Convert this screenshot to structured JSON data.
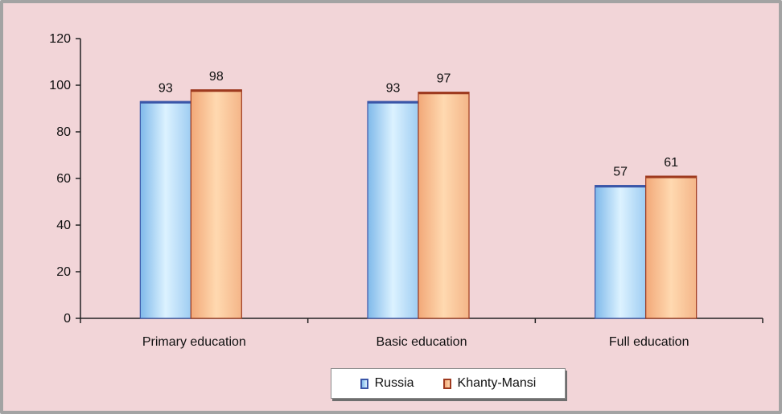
{
  "chart_data": {
    "type": "bar",
    "categories": [
      "Primary education",
      "Basic education",
      "Full education"
    ],
    "series": [
      {
        "name": "Russia",
        "values": [
          93,
          93,
          57
        ]
      },
      {
        "name": "Khanty-Mansi",
        "values": [
          98,
          97,
          61
        ]
      }
    ],
    "ylim": [
      0,
      120
    ],
    "yticks": [
      0,
      20,
      40,
      60,
      80,
      100,
      120
    ],
    "grid": false,
    "legend_position": "bottom-center",
    "colors": {
      "Russia": {
        "fill_light": "#dcf2ff",
        "fill_dark": "#7fb9ea",
        "border": "#3a56a8"
      },
      "Khanty-Mansi": {
        "fill_light": "#ffd9b0",
        "fill_dark": "#f2a878",
        "border": "#9e3a1f"
      },
      "background": "#f2d5d8",
      "frame": "#a3a3a3",
      "axis": "#222222"
    }
  }
}
